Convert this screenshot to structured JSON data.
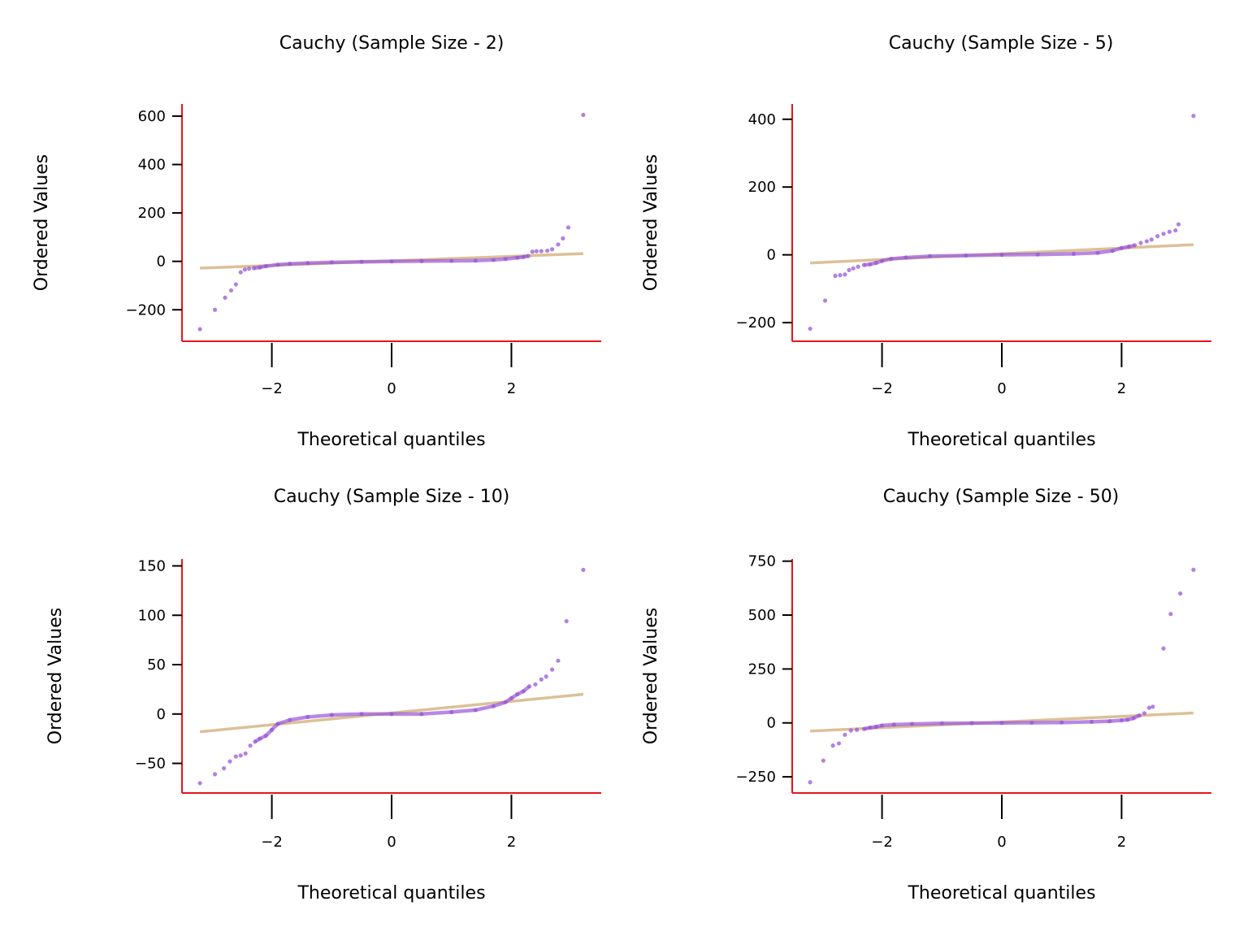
{
  "colors": {
    "spine": "#e8141b",
    "points": "#9a55d8",
    "fit_line": "#dcc096",
    "ticks": "#000000"
  },
  "chart_data": [
    {
      "type": "scatter",
      "title": "Cauchy (Sample Size - 2)",
      "xlabel": "Theoretical quantiles",
      "ylabel": "Ordered Values",
      "xlim": [
        -3.5,
        3.5
      ],
      "ylim": [
        -330,
        650
      ],
      "xticks": [
        -2,
        0,
        2
      ],
      "xtick_labels": [
        "−2",
        "0",
        "2"
      ],
      "yticks": [
        -200,
        0,
        200,
        400,
        600
      ],
      "ytick_labels": [
        "−200",
        "0",
        "200",
        "400",
        "600"
      ],
      "fit_line": {
        "x": [
          -3.2,
          3.2
        ],
        "y": [
          -28,
          32
        ]
      },
      "points": [
        [
          -3.2,
          -280
        ],
        [
          -2.95,
          -200
        ],
        [
          -2.78,
          -150
        ],
        [
          -2.68,
          -120
        ],
        [
          -2.6,
          -95
        ],
        [
          -2.52,
          -45
        ],
        [
          -2.45,
          -34
        ],
        [
          -2.38,
          -30
        ],
        [
          -2.3,
          -28
        ],
        [
          -2.2,
          -25
        ],
        [
          -2.1,
          -20
        ],
        [
          -1.9,
          -14
        ],
        [
          -1.7,
          -10
        ],
        [
          -1.4,
          -7
        ],
        [
          -1.0,
          -4
        ],
        [
          -0.5,
          -2
        ],
        [
          0.0,
          0
        ],
        [
          0.5,
          1
        ],
        [
          1.0,
          2
        ],
        [
          1.4,
          3
        ],
        [
          1.7,
          6
        ],
        [
          1.9,
          10
        ],
        [
          2.1,
          15
        ],
        [
          2.2,
          18
        ],
        [
          2.28,
          22
        ],
        [
          2.35,
          40
        ],
        [
          2.42,
          42
        ],
        [
          2.5,
          42
        ],
        [
          2.6,
          44
        ],
        [
          2.68,
          50
        ],
        [
          2.78,
          70
        ],
        [
          2.86,
          95
        ],
        [
          2.95,
          140
        ],
        [
          3.2,
          605
        ]
      ]
    },
    {
      "type": "scatter",
      "title": "Cauchy (Sample Size - 5)",
      "xlabel": "Theoretical quantiles",
      "ylabel": "Ordered Values",
      "xlim": [
        -3.5,
        3.5
      ],
      "ylim": [
        -255,
        445
      ],
      "xticks": [
        -2,
        0,
        2
      ],
      "xtick_labels": [
        "−2",
        "0",
        "2"
      ],
      "yticks": [
        -200,
        0,
        200,
        400
      ],
      "ytick_labels": [
        "−200",
        "0",
        "200",
        "400"
      ],
      "fit_line": {
        "x": [
          -3.2,
          3.2
        ],
        "y": [
          -24,
          30
        ]
      },
      "points": [
        [
          -3.2,
          -218
        ],
        [
          -2.95,
          -135
        ],
        [
          -2.78,
          -62
        ],
        [
          -2.7,
          -60
        ],
        [
          -2.62,
          -58
        ],
        [
          -2.55,
          -45
        ],
        [
          -2.48,
          -40
        ],
        [
          -2.4,
          -35
        ],
        [
          -2.3,
          -30
        ],
        [
          -2.2,
          -28
        ],
        [
          -2.1,
          -24
        ],
        [
          -2.0,
          -18
        ],
        [
          -1.85,
          -12
        ],
        [
          -1.6,
          -8
        ],
        [
          -1.2,
          -4
        ],
        [
          -0.6,
          -2
        ],
        [
          0.0,
          0
        ],
        [
          0.6,
          1
        ],
        [
          1.2,
          3
        ],
        [
          1.6,
          6
        ],
        [
          1.85,
          12
        ],
        [
          2.0,
          20
        ],
        [
          2.12,
          24
        ],
        [
          2.22,
          28
        ],
        [
          2.32,
          35
        ],
        [
          2.42,
          40
        ],
        [
          2.5,
          45
        ],
        [
          2.6,
          55
        ],
        [
          2.7,
          62
        ],
        [
          2.8,
          68
        ],
        [
          2.9,
          72
        ],
        [
          2.95,
          90
        ],
        [
          3.2,
          410
        ]
      ]
    },
    {
      "type": "scatter",
      "title": "Cauchy (Sample Size - 10)",
      "xlabel": "Theoretical quantiles",
      "ylabel": "Ordered Values",
      "xlim": [
        -3.5,
        3.5
      ],
      "ylim": [
        -80,
        157
      ],
      "xticks": [
        -2,
        0,
        2
      ],
      "xtick_labels": [
        "−2",
        "0",
        "2"
      ],
      "yticks": [
        -50,
        0,
        50,
        100,
        150
      ],
      "ytick_labels": [
        "−50",
        "0",
        "50",
        "100",
        "150"
      ],
      "fit_line": {
        "x": [
          -3.2,
          3.2
        ],
        "y": [
          -18,
          20
        ]
      },
      "points": [
        [
          -3.2,
          -70
        ],
        [
          -2.95,
          -61
        ],
        [
          -2.8,
          -55
        ],
        [
          -2.7,
          -48
        ],
        [
          -2.6,
          -43
        ],
        [
          -2.52,
          -42
        ],
        [
          -2.44,
          -40
        ],
        [
          -2.36,
          -32
        ],
        [
          -2.28,
          -28
        ],
        [
          -2.2,
          -25
        ],
        [
          -2.1,
          -22
        ],
        [
          -2.0,
          -16
        ],
        [
          -1.9,
          -10
        ],
        [
          -1.7,
          -6
        ],
        [
          -1.4,
          -3
        ],
        [
          -1.0,
          -1
        ],
        [
          -0.5,
          0
        ],
        [
          0.0,
          0
        ],
        [
          0.5,
          0
        ],
        [
          1.0,
          2
        ],
        [
          1.4,
          4
        ],
        [
          1.7,
          8
        ],
        [
          1.9,
          12
        ],
        [
          2.0,
          16
        ],
        [
          2.1,
          20
        ],
        [
          2.2,
          23
        ],
        [
          2.3,
          28
        ],
        [
          2.4,
          30
        ],
        [
          2.5,
          35
        ],
        [
          2.58,
          38
        ],
        [
          2.68,
          45
        ],
        [
          2.78,
          54
        ],
        [
          2.92,
          94
        ],
        [
          3.2,
          146
        ]
      ]
    },
    {
      "type": "scatter",
      "title": "Cauchy (Sample Size - 50)",
      "xlabel": "Theoretical quantiles",
      "ylabel": "Ordered Values",
      "xlim": [
        -3.5,
        3.5
      ],
      "ylim": [
        -325,
        760
      ],
      "xticks": [
        -2,
        0,
        2
      ],
      "xtick_labels": [
        "−2",
        "0",
        "2"
      ],
      "yticks": [
        -250,
        0,
        250,
        500,
        750
      ],
      "ytick_labels": [
        "−250",
        "0",
        "250",
        "500",
        "750"
      ],
      "fit_line": {
        "x": [
          -3.2,
          3.2
        ],
        "y": [
          -38,
          46
        ]
      },
      "points": [
        [
          -3.2,
          -275
        ],
        [
          -2.98,
          -175
        ],
        [
          -2.82,
          -105
        ],
        [
          -2.72,
          -95
        ],
        [
          -2.62,
          -55
        ],
        [
          -2.52,
          -35
        ],
        [
          -2.42,
          -32
        ],
        [
          -2.3,
          -28
        ],
        [
          -2.2,
          -22
        ],
        [
          -2.1,
          -18
        ],
        [
          -2.0,
          -12
        ],
        [
          -1.8,
          -8
        ],
        [
          -1.5,
          -5
        ],
        [
          -1.0,
          -2
        ],
        [
          -0.5,
          -1
        ],
        [
          0.0,
          0
        ],
        [
          0.5,
          1
        ],
        [
          1.0,
          2
        ],
        [
          1.5,
          5
        ],
        [
          1.8,
          8
        ],
        [
          2.0,
          12
        ],
        [
          2.1,
          15
        ],
        [
          2.2,
          22
        ],
        [
          2.3,
          35
        ],
        [
          2.38,
          45
        ],
        [
          2.46,
          70
        ],
        [
          2.52,
          75
        ],
        [
          2.7,
          345
        ],
        [
          2.82,
          505
        ],
        [
          2.98,
          600
        ],
        [
          3.2,
          710
        ]
      ]
    }
  ]
}
